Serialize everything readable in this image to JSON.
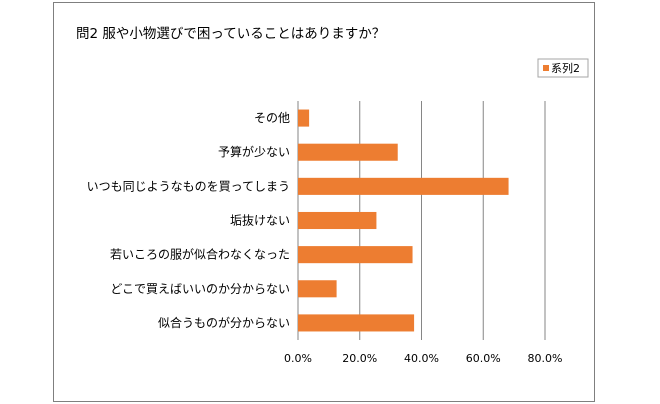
{
  "chart_data": {
    "type": "bar",
    "orientation": "horizontal",
    "title": "問2 服や小物選びで困っていることはありますか？",
    "categories": [
      "その他",
      "予算が少ない",
      "いつも同じようなものを買ってしまう",
      "垢抜けない",
      "若いころの服が似合わなくなった",
      "どこで買えばいいのか分からない",
      "似合うものが分からない"
    ],
    "series": [
      {
        "name": "系列2",
        "color": "#ED7D31",
        "values": [
          0.036,
          0.323,
          0.682,
          0.254,
          0.371,
          0.125,
          0.376
        ]
      }
    ],
    "xlim": [
      0,
      0.8
    ],
    "xticks": [
      0,
      0.2,
      0.4,
      0.6,
      0.8
    ],
    "xtick_labels": [
      "0.0%",
      "20.0%",
      "40.0%",
      "60.0%",
      "80.0%"
    ],
    "grid": "vertical",
    "legend": "top-right"
  }
}
